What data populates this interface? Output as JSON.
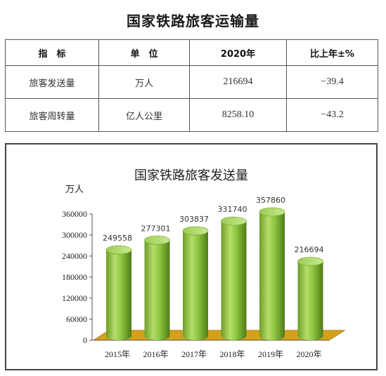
{
  "page": {
    "title": "国家铁路旅客运输量"
  },
  "table": {
    "headers": [
      "指　标",
      "单　位",
      "2020年",
      "比上年±%"
    ],
    "rows": [
      [
        "旅客发送量",
        "万人",
        "216694",
        "−39.4"
      ],
      [
        "旅客周转量",
        "亿人公里",
        "8258.10",
        "−43.2"
      ]
    ]
  },
  "chart_data": {
    "type": "bar",
    "title": "国家铁路旅客发送量",
    "ylabel": "万人",
    "xlabel": "",
    "categories": [
      "2015年",
      "2016年",
      "2017年",
      "2018年",
      "2019年",
      "2020年"
    ],
    "values": [
      249558,
      277301,
      303837,
      331740,
      357860,
      216694
    ],
    "ylim": [
      0,
      360000
    ],
    "yticks": [
      "0",
      "60000",
      "120000",
      "180000",
      "240000",
      "300000",
      "360000"
    ],
    "grid": false,
    "legend": "none",
    "style": "3d-cylinder",
    "colors": {
      "bar": "#8dc63f",
      "bar_dark": "#5c8a1e",
      "bar_light": "#c6e88a",
      "floor": "#d4a21a",
      "floor_dark": "#a97c0d"
    }
  }
}
